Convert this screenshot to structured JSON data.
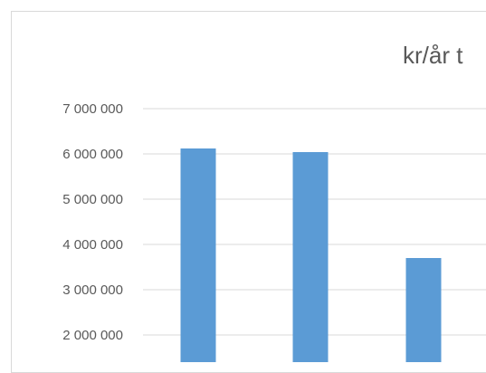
{
  "chart_data": {
    "type": "bar",
    "title": "kr/år t",
    "categories": [
      "",
      "",
      ""
    ],
    "values": [
      6120000,
      6040000,
      3700000
    ],
    "ylim": [
      1000000,
      7000000
    ],
    "yticks": [
      {
        "value": 2000000,
        "label": "2 000 000"
      },
      {
        "value": 3000000,
        "label": "3 000 000"
      },
      {
        "value": 4000000,
        "label": "4 000 000"
      },
      {
        "value": 5000000,
        "label": "5 000 000"
      },
      {
        "value": 6000000,
        "label": "6 000 000"
      },
      {
        "value": 7000000,
        "label": "7 000 000"
      }
    ],
    "grid": true,
    "legend": "none",
    "bar_color": "#5b9bd5",
    "grid_color": "#d9d9d9"
  }
}
